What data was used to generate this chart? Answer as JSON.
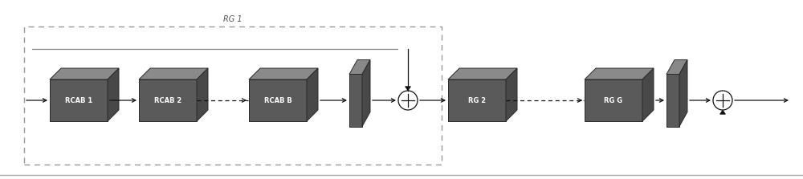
{
  "bg_color": "#ffffff",
  "box_face": "#5a5a5a",
  "box_top": "#8a8a8a",
  "box_side": "#484848",
  "thin_face": "#5a5a5a",
  "thin_top": "#888888",
  "thin_side": "#484848",
  "arrow_color": "#111111",
  "dashed_color": "#999999",
  "skip_line_color": "#888888",
  "text_color": "#ffffff",
  "label_color": "#555555",
  "bottom_line_color": "#aaaaaa",
  "rg1_label": "RG 1",
  "rcab_labels": [
    "RCAB 1",
    "RCAB 2",
    "RCAB B"
  ],
  "rg_labels": [
    "RG 2",
    "RG G"
  ],
  "figsize": [
    10.0,
    2.23
  ],
  "dpi": 100,
  "xlim": [
    0,
    10
  ],
  "ylim": [
    0,
    2.23
  ]
}
